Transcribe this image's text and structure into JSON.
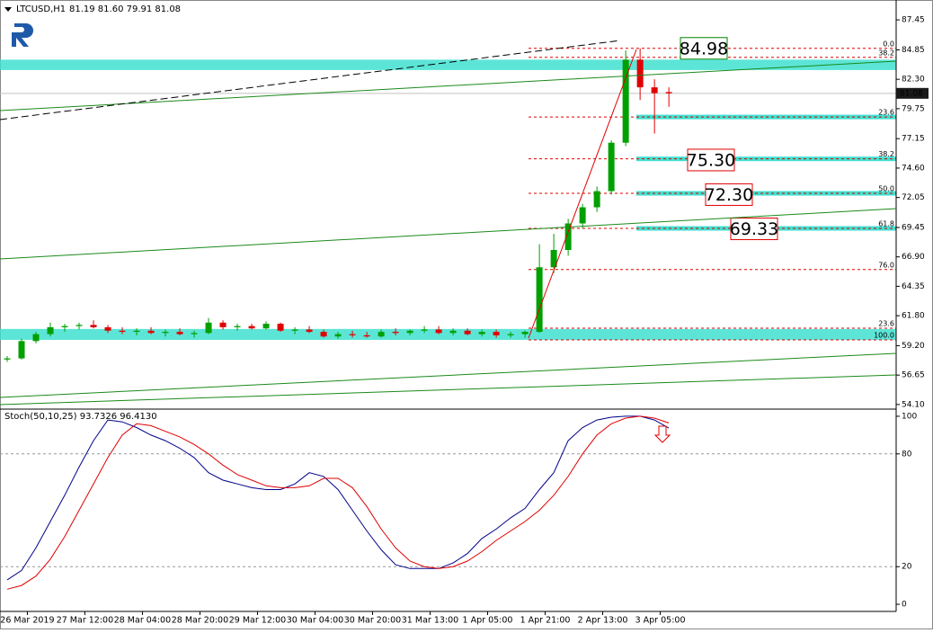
{
  "chart_data": [
    {
      "type": "candlestick",
      "title": "LTCUSD,H1",
      "subtitle": "81.19 81.60 79.91 81.08",
      "open": [
        58.0,
        58.1,
        59.6,
        60.2,
        60.8,
        60.9,
        61.0,
        60.8,
        60.5,
        60.4,
        60.5,
        60.3,
        60.4,
        60.2,
        60.3,
        61.2,
        60.8,
        60.9,
        60.7,
        61.1,
        60.5,
        60.6,
        60.4,
        60.0,
        60.2,
        60.1,
        60.0,
        60.4,
        60.3,
        60.5,
        60.6,
        60.3,
        60.5,
        60.2,
        60.4,
        60.1,
        60.2,
        60.4,
        66.0,
        67.5,
        69.8,
        71.2,
        72.6,
        76.8,
        84.0,
        81.6,
        81.19
      ],
      "high": [
        58.3,
        59.8,
        60.4,
        61.2,
        61.1,
        61.2,
        61.4,
        61.0,
        60.8,
        60.7,
        60.8,
        60.6,
        60.7,
        60.5,
        61.6,
        61.4,
        61.1,
        61.1,
        61.3,
        61.2,
        60.8,
        60.9,
        60.6,
        60.4,
        60.5,
        60.4,
        60.6,
        60.7,
        60.6,
        60.9,
        60.9,
        60.7,
        60.7,
        60.6,
        60.6,
        60.4,
        60.5,
        68.0,
        68.9,
        70.2,
        71.5,
        73.0,
        77.0,
        84.8,
        84.98,
        82.3,
        81.6
      ],
      "low": [
        57.8,
        58.0,
        59.4,
        60.0,
        60.4,
        60.6,
        60.7,
        60.3,
        60.2,
        60.1,
        60.2,
        60.0,
        60.1,
        59.9,
        60.2,
        60.6,
        60.5,
        60.6,
        60.6,
        60.4,
        60.2,
        60.3,
        59.9,
        59.8,
        59.9,
        59.9,
        59.9,
        60.1,
        60.1,
        60.3,
        60.2,
        60.1,
        60.1,
        60.0,
        59.9,
        59.9,
        59.9,
        60.3,
        65.5,
        67.0,
        69.4,
        70.8,
        72.3,
        76.5,
        80.5,
        77.6,
        79.91
      ],
      "close": [
        58.1,
        59.6,
        60.2,
        60.8,
        60.9,
        61.0,
        60.8,
        60.5,
        60.4,
        60.5,
        60.3,
        60.4,
        60.2,
        60.3,
        61.2,
        60.8,
        60.9,
        60.7,
        61.1,
        60.5,
        60.6,
        60.4,
        60.0,
        60.2,
        60.1,
        60.0,
        60.4,
        60.3,
        60.5,
        60.6,
        60.3,
        60.5,
        60.2,
        60.4,
        60.1,
        60.2,
        60.4,
        66.0,
        67.5,
        69.8,
        71.2,
        72.6,
        76.8,
        84.0,
        81.6,
        81.1,
        81.08
      ],
      "up_color": "#00a000",
      "down_color": "#e00000",
      "xlim": [
        -0.5,
        61.8
      ],
      "ylim": [
        53.7,
        88.55
      ],
      "yticks": [
        87.45,
        84.85,
        {
          "value": 82.3,
          "label": "82.30"
        },
        79.75,
        77.15,
        {
          "value": 74.6,
          "label": "74.60"
        },
        72.05,
        69.45,
        {
          "value": 66.9,
          "label": "66.90"
        },
        64.35,
        {
          "value": 61.8,
          "label": "61.80"
        },
        {
          "value": 59.2,
          "label": "59.20"
        },
        56.65,
        {
          "value": 54.1,
          "label": "54.10"
        }
      ],
      "xticks": [
        {
          "value": 1.4,
          "label": "26 Mar 2019"
        },
        {
          "value": 5.4,
          "label": "27 Mar 12:00"
        },
        {
          "value": 9.4,
          "label": "28 Mar 04:00"
        },
        {
          "value": 13.4,
          "label": "28 Mar 20:00"
        },
        {
          "value": 17.4,
          "label": "29 Mar 12:00"
        },
        {
          "value": 21.4,
          "label": "30 Mar 04:00"
        },
        {
          "value": 25.4,
          "label": "30 Mar 20:00"
        },
        {
          "value": 29.4,
          "label": "31 Mar 13:00"
        },
        {
          "value": 33.4,
          "label": "1 Apr 05:00"
        },
        {
          "value": 37.4,
          "label": "1 Apr 21:00"
        },
        {
          "value": 41.4,
          "label": "2 Apr 13:00"
        },
        {
          "value": 45.4,
          "label": "3 Apr 05:00"
        }
      ],
      "last_price": 81.08,
      "zones": [
        [
          83.1,
          84.0
        ],
        [
          59.7,
          60.65
        ]
      ],
      "fib_levels": [
        {
          "price": 84.98,
          "label": "0.0"
        },
        {
          "price": 84.2,
          "label": "38.2"
        },
        {
          "price": 79.03,
          "label": "23.6",
          "band": true
        },
        {
          "price": 75.4,
          "label": "38.2",
          "band": true
        },
        {
          "price": 72.41,
          "label": "50.0",
          "band": true
        },
        {
          "price": 69.37,
          "label": "61.8",
          "band": true
        },
        {
          "price": 65.8,
          "label": "76.0"
        },
        {
          "price": 60.72,
          "label": "23.6"
        },
        {
          "price": 59.7,
          "label": "100.0"
        }
      ],
      "price_labels": [
        {
          "value": 84.98,
          "label": "84.98",
          "color": "#008000"
        },
        {
          "value": 75.3,
          "label": "75.30",
          "color": "#e00000"
        },
        {
          "value": 72.3,
          "label": "72.30",
          "color": "#e00000"
        },
        {
          "value": 69.33,
          "label": "69.33",
          "color": "#e00000"
        }
      ]
    },
    {
      "type": "stochastic",
      "title": "Stoch(50,10,25) 93.7326 96.4130",
      "ylim": [
        -3.8,
        103.8
      ],
      "yticks": [
        100,
        80,
        20,
        0
      ],
      "series": [
        {
          "color": "#00008b",
          "values": [
            13,
            18,
            30,
            44,
            58,
            73,
            87,
            98,
            97,
            94,
            90,
            87,
            83,
            78,
            70,
            66,
            64,
            62,
            61,
            61,
            64,
            70,
            68,
            61,
            50,
            39,
            29,
            21,
            19,
            19,
            19,
            22,
            27,
            35,
            40,
            46,
            51,
            61,
            70,
            87,
            94,
            98,
            99.5,
            100,
            100,
            98,
            93.7326
          ]
        },
        {
          "color": "#e00000",
          "values": [
            8,
            10,
            15,
            24,
            36,
            50,
            64,
            78,
            90,
            96,
            95,
            92,
            89,
            85,
            80,
            74,
            69,
            66,
            63,
            62,
            62,
            63,
            67,
            67,
            62,
            52,
            40,
            30,
            23,
            20,
            19,
            20,
            23,
            28,
            34,
            39,
            44,
            50,
            58,
            68,
            80,
            90,
            96,
            99,
            100,
            99,
            96.413
          ]
        }
      ]
    }
  ]
}
